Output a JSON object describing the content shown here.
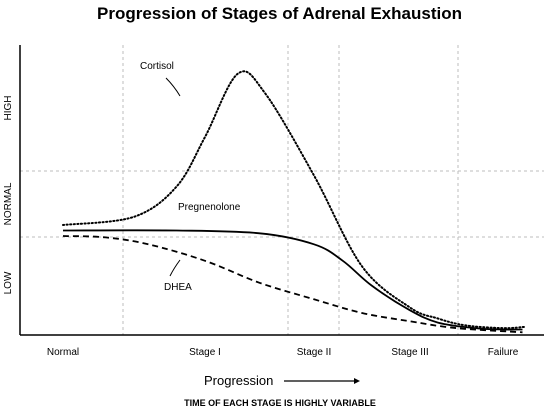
{
  "title": "Progression of Stages of Adrenal Exhaustion",
  "chart_data": {
    "type": "line",
    "title": "Progression of Stages of Adrenal Exhaustion",
    "xlabel": "Progression",
    "footnote": "TIME OF EACH STAGE IS HIGHLY VARIABLE",
    "x_categories": [
      "Normal",
      "Stage I",
      "Stage II",
      "Stage III",
      "Failure"
    ],
    "y_levels": [
      "LOW",
      "NORMAL",
      "HIGH"
    ],
    "grid": true,
    "legend": "none",
    "series": [
      {
        "name": "Cortisol",
        "style": "dotted",
        "points": [
          [
            0,
            0.4
          ],
          [
            0.5,
            0.43
          ],
          [
            0.8,
            0.54
          ],
          [
            1.0,
            0.72
          ],
          [
            1.3,
            0.95
          ],
          [
            1.55,
            0.88
          ],
          [
            2.0,
            0.58
          ],
          [
            2.5,
            0.25
          ],
          [
            3.0,
            0.1
          ],
          [
            3.3,
            0.06
          ],
          [
            3.6,
            0.035
          ],
          [
            4.0,
            0.025
          ],
          [
            4.35,
            0.03
          ]
        ]
      },
      {
        "name": "Pregnenolone",
        "style": "solid",
        "points": [
          [
            0,
            0.38
          ],
          [
            0.8,
            0.38
          ],
          [
            1.5,
            0.37
          ],
          [
            2.0,
            0.33
          ],
          [
            2.3,
            0.27
          ],
          [
            2.6,
            0.18
          ],
          [
            3.0,
            0.09
          ],
          [
            3.3,
            0.045
          ],
          [
            3.7,
            0.025
          ],
          [
            4.0,
            0.02
          ],
          [
            4.3,
            0.02
          ]
        ]
      },
      {
        "name": "DHEA",
        "style": "dashed",
        "points": [
          [
            0,
            0.36
          ],
          [
            0.3,
            0.355
          ],
          [
            0.6,
            0.33
          ],
          [
            1.0,
            0.27
          ],
          [
            1.5,
            0.19
          ],
          [
            2.0,
            0.13
          ],
          [
            2.5,
            0.08
          ],
          [
            3.0,
            0.05
          ],
          [
            3.5,
            0.025
          ],
          [
            4.3,
            0.01
          ]
        ]
      }
    ]
  },
  "icons": {
    "arrow": "long-right-arrow-icon"
  }
}
